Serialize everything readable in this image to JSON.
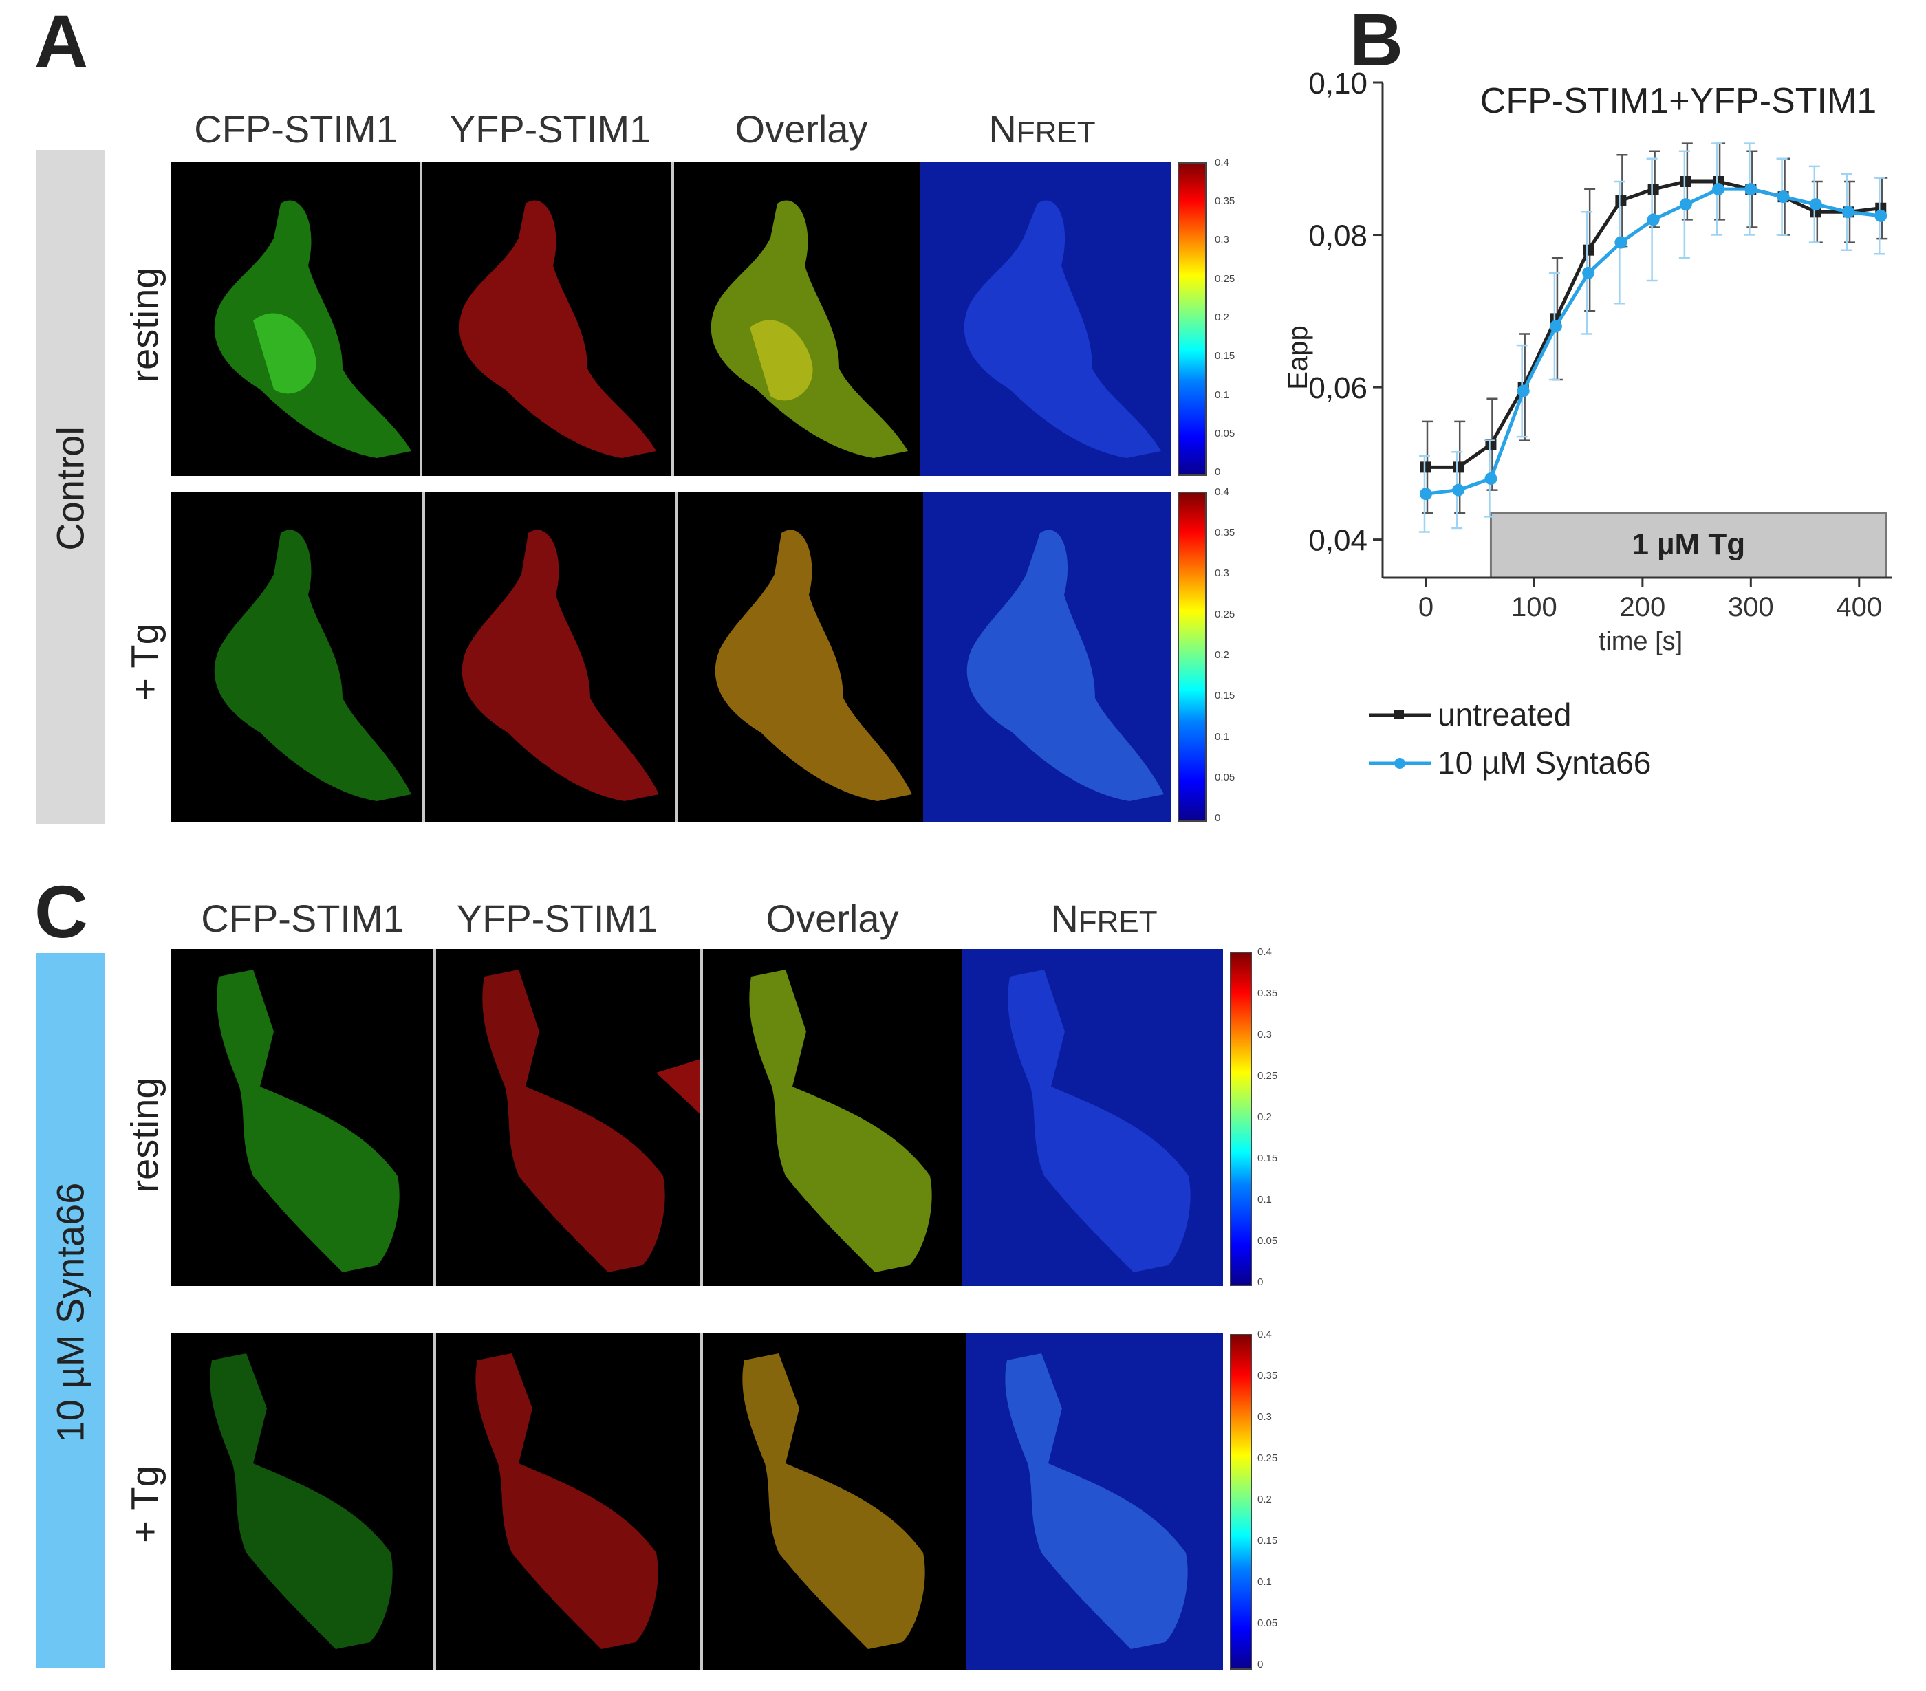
{
  "panels": {
    "A": {
      "letter": "A",
      "condition": "Control",
      "columns": {
        "cfp": "CFP-STIM1",
        "yfp": "YFP-STIM1",
        "overlay": "Overlay",
        "nfret_n": "N",
        "nfret_sc": "FRET"
      },
      "rows": [
        "resting",
        "+ Tg"
      ]
    },
    "B": {
      "letter": "B"
    },
    "C": {
      "letter": "C",
      "condition": "10 µM Synta66",
      "columns": {
        "cfp": "CFP-STIM1",
        "yfp": "YFP-STIM1",
        "overlay": "Overlay",
        "nfret_n": "N",
        "nfret_sc": "FRET"
      },
      "rows": [
        "resting",
        "+ Tg"
      ]
    }
  },
  "colorbar_ticks": [
    "0.4",
    "0.35",
    "0.3",
    "0.25",
    "0.2",
    "0.15",
    "0.1",
    "0.05",
    "0"
  ],
  "colors": {
    "control_bar": "#d9d9d9",
    "synta_bar": "#6ec6f5",
    "untreated": "#222222",
    "synta66": "#29a3e8",
    "tg_box": "#c8c8c8"
  },
  "chart_data": {
    "type": "line",
    "title": "CFP-STIM1+YFP-STIM1",
    "xlabel": "time [s]",
    "ylabel": "Eapp",
    "xlim": [
      -40,
      430
    ],
    "ylim": [
      0.035,
      0.1
    ],
    "xticks": [
      0,
      100,
      200,
      300,
      400
    ],
    "yticks": [
      0.04,
      0.06,
      0.08,
      0.1
    ],
    "ytick_labels": [
      "0,04",
      "0,06",
      "0,08",
      "0,10"
    ],
    "shaded_region": {
      "label": "1 µM Tg",
      "x_start": 60,
      "x_end": 425
    },
    "legend_position": "bottom-left",
    "series": [
      {
        "name": "untreated",
        "x": [
          0,
          30,
          60,
          90,
          120,
          150,
          180,
          210,
          240,
          270,
          300,
          330,
          360,
          390,
          420
        ],
        "y": [
          0.0495,
          0.0495,
          0.0525,
          0.06,
          0.069,
          0.078,
          0.0845,
          0.086,
          0.087,
          0.087,
          0.086,
          0.085,
          0.083,
          0.083,
          0.0835
        ],
        "err": [
          0.006,
          0.006,
          0.006,
          0.007,
          0.008,
          0.008,
          0.006,
          0.005,
          0.005,
          0.005,
          0.005,
          0.005,
          0.004,
          0.004,
          0.004
        ]
      },
      {
        "name": "10 µM Synta66",
        "x": [
          0,
          30,
          60,
          90,
          120,
          150,
          180,
          210,
          240,
          270,
          300,
          330,
          360,
          390,
          420
        ],
        "y": [
          0.046,
          0.0465,
          0.048,
          0.0595,
          0.068,
          0.075,
          0.079,
          0.082,
          0.084,
          0.086,
          0.086,
          0.085,
          0.084,
          0.083,
          0.0825
        ],
        "err": [
          0.005,
          0.005,
          0.005,
          0.006,
          0.007,
          0.008,
          0.008,
          0.008,
          0.007,
          0.006,
          0.006,
          0.005,
          0.005,
          0.005,
          0.005
        ]
      }
    ]
  }
}
